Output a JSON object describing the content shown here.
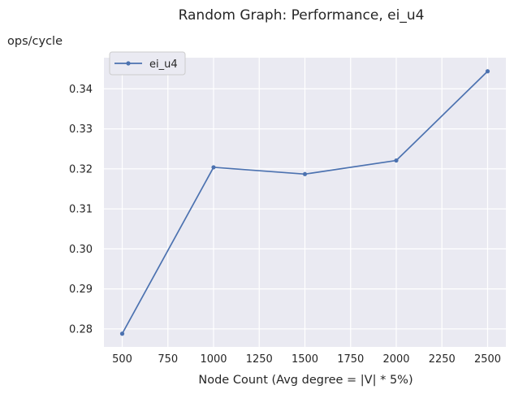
{
  "chart_data": {
    "type": "line",
    "title": "Random Graph: Performance, ei_u4",
    "xlabel": "Node Count (Avg degree = |V| * 5%)",
    "ylabel": "ops/cycle",
    "x": [
      500,
      1000,
      1500,
      2000,
      2500
    ],
    "series": [
      {
        "name": "ei_u4",
        "values": [
          0.2788,
          0.3204,
          0.3187,
          0.3221,
          0.3444
        ],
        "color": "#4c72b0"
      }
    ],
    "xlim": [
      400,
      2600
    ],
    "ylim": [
      0.2755,
      0.3478
    ],
    "xticks": [
      500,
      750,
      1000,
      1250,
      1500,
      1750,
      2000,
      2250,
      2500
    ],
    "yticks": [
      0.28,
      0.29,
      0.3,
      0.31,
      0.32,
      0.33,
      0.34
    ],
    "xtick_labels": [
      "500",
      "750",
      "1000",
      "1250",
      "1500",
      "1750",
      "2000",
      "2250",
      "2500"
    ],
    "ytick_labels": [
      "0.28",
      "0.29",
      "0.30",
      "0.31",
      "0.32",
      "0.33",
      "0.34"
    ],
    "legend": {
      "placement": "top-left",
      "entries": [
        "ei_u4"
      ]
    },
    "grid": true,
    "style": {
      "plot_background": "#eaeaf2",
      "grid_color": "#ffffff",
      "text_color": "#262626"
    }
  }
}
